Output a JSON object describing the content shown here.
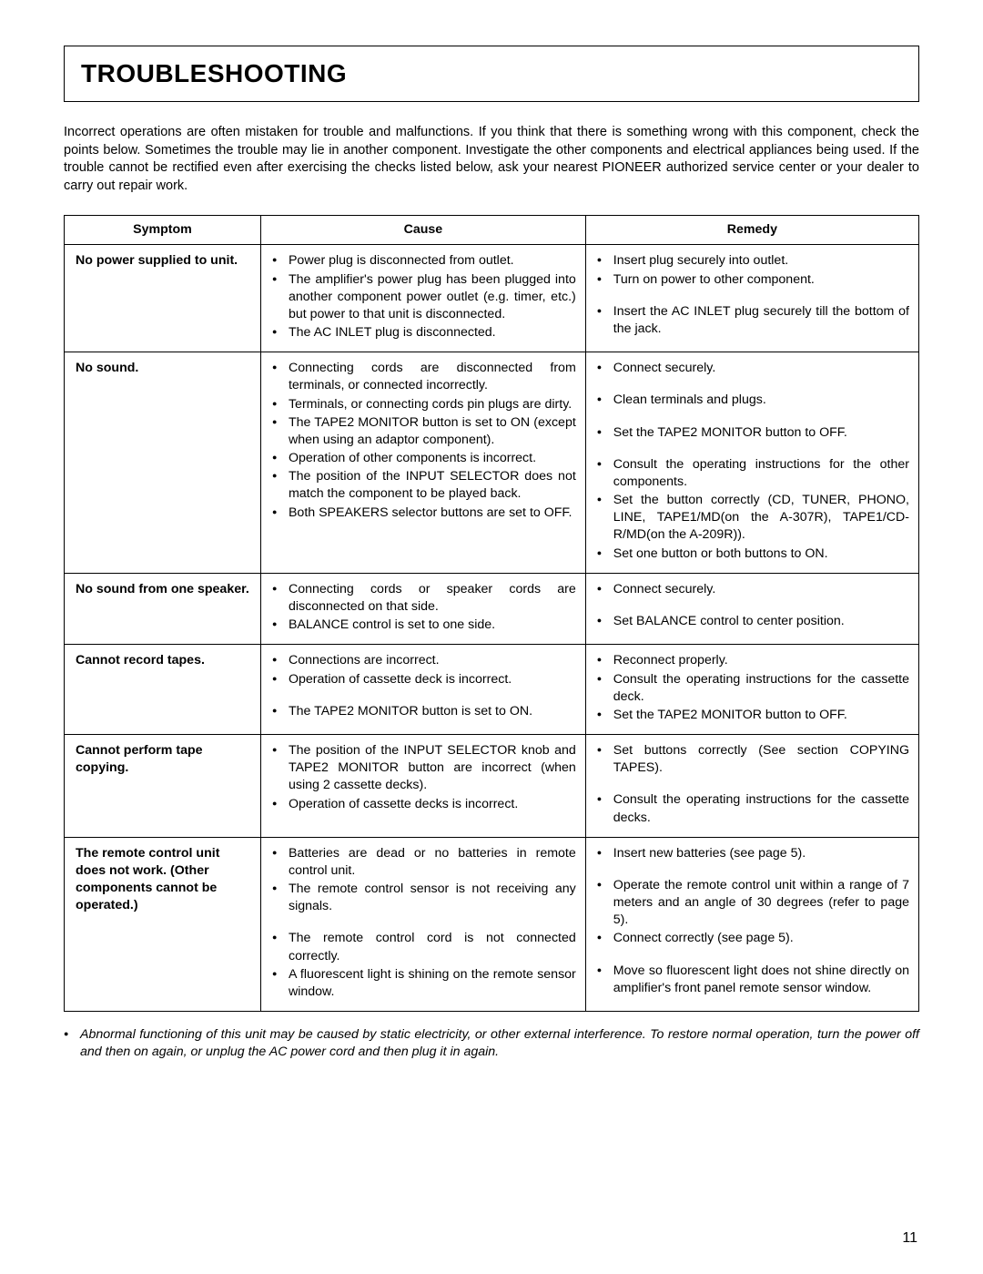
{
  "title": "TROUBLESHOOTING",
  "intro": "Incorrect operations are often mistaken for trouble and malfunctions. If you think that there is something wrong with this component, check the points below. Sometimes the trouble may lie in another component. Investigate the other components and electrical appliances being used.\nIf the trouble cannot be rectified even after exercising the checks listed below, ask your nearest PIONEER authorized service center or your dealer to carry out repair work.",
  "headers": {
    "symptom": "Symptom",
    "cause": "Cause",
    "remedy": "Remedy"
  },
  "rows": [
    {
      "symptom": "No power supplied to unit.",
      "causes": [
        {
          "text": "Power plug is disconnected from outlet."
        },
        {
          "text": "The amplifier's power plug has been plugged into another component power outlet (e.g. timer, etc.) but power to that unit is disconnected."
        },
        {
          "text": "The AC INLET plug is disconnected."
        }
      ],
      "remedies": [
        {
          "text": "Insert plug securely into outlet."
        },
        {
          "text": "Turn on power to other component."
        },
        {
          "text": "Insert the AC INLET plug securely till the bottom of the jack.",
          "spaced": true
        }
      ]
    },
    {
      "symptom": "No sound.",
      "causes": [
        {
          "text": "Connecting cords are disconnected from terminals, or connected incorrectly."
        },
        {
          "text": "Terminals, or connecting cords pin plugs are dirty."
        },
        {
          "text": "The TAPE2 MONITOR button is set to ON (except when using an adaptor component)."
        },
        {
          "text": "Operation of other components is incorrect."
        },
        {
          "text": "The position of the INPUT SELECTOR does not match the component to be played back."
        },
        {
          "text": "Both SPEAKERS selector buttons are set to OFF."
        }
      ],
      "remedies": [
        {
          "text": "Connect securely."
        },
        {
          "text": "Clean terminals and plugs.",
          "spaced": true
        },
        {
          "text": "Set the TAPE2 MONITOR button to OFF.",
          "spaced": true
        },
        {
          "text": "Consult the operating instructions for the other components.",
          "spaced": true
        },
        {
          "text": "Set the button correctly (CD, TUNER, PHONO, LINE, TAPE1/MD(on the A-307R), TAPE1/CD-R/MD(on the A-209R))."
        },
        {
          "text": "Set one button or both buttons to ON."
        }
      ]
    },
    {
      "symptom": "No sound from one speaker.",
      "causes": [
        {
          "text": "Connecting cords or speaker cords are disconnected on that side."
        },
        {
          "text": "BALANCE control is set to one side."
        }
      ],
      "remedies": [
        {
          "text": "Connect securely."
        },
        {
          "text": "Set BALANCE control to center position.",
          "spaced": true
        }
      ]
    },
    {
      "symptom": "Cannot record tapes.",
      "causes": [
        {
          "text": "Connections are incorrect."
        },
        {
          "text": "Operation of cassette deck is incorrect."
        },
        {
          "text": "The TAPE2 MONITOR button is set to ON.",
          "spaced": true
        }
      ],
      "remedies": [
        {
          "text": "Reconnect properly."
        },
        {
          "text": "Consult the operating instructions for the cassette deck."
        },
        {
          "text": "Set the TAPE2 MONITOR button to OFF."
        }
      ]
    },
    {
      "symptom": "Cannot perform tape copying.",
      "causes": [
        {
          "text": "The position of the INPUT SELECTOR knob and TAPE2 MONITOR button are incorrect (when using 2 cassette decks)."
        },
        {
          "text": "Operation of cassette decks is incorrect."
        }
      ],
      "remedies": [
        {
          "text": "Set buttons correctly (See section COPYING TAPES)."
        },
        {
          "text": "Consult the operating instructions for the cassette decks.",
          "spaced": true
        }
      ]
    },
    {
      "symptom": "The remote control unit does not work. (Other components cannot be operated.)",
      "causes": [
        {
          "text": "Batteries are dead or no batteries in remote control unit."
        },
        {
          "text": "The remote control sensor is not receiving any signals."
        },
        {
          "text": "The remote control cord is not connected correctly.",
          "spaced": true
        },
        {
          "text": "A fluorescent light is shining on the remote sensor window."
        }
      ],
      "remedies": [
        {
          "text": "Insert new batteries (see page 5)."
        },
        {
          "text": "Operate the remote control unit within a range of 7 meters and an angle of 30 degrees (refer to page 5).",
          "spaced": true
        },
        {
          "text": "Connect correctly (see page 5)."
        },
        {
          "text": "Move so fluorescent light does not shine directly on amplifier's front panel remote sensor window.",
          "spaced": true
        }
      ]
    }
  ],
  "footnote": "Abnormal functioning of this unit may be caused by static electricity, or other external interference. To restore normal operation, turn the power off and then on again, or unplug the AC power cord and then plug it in again.",
  "pagenum": "11"
}
